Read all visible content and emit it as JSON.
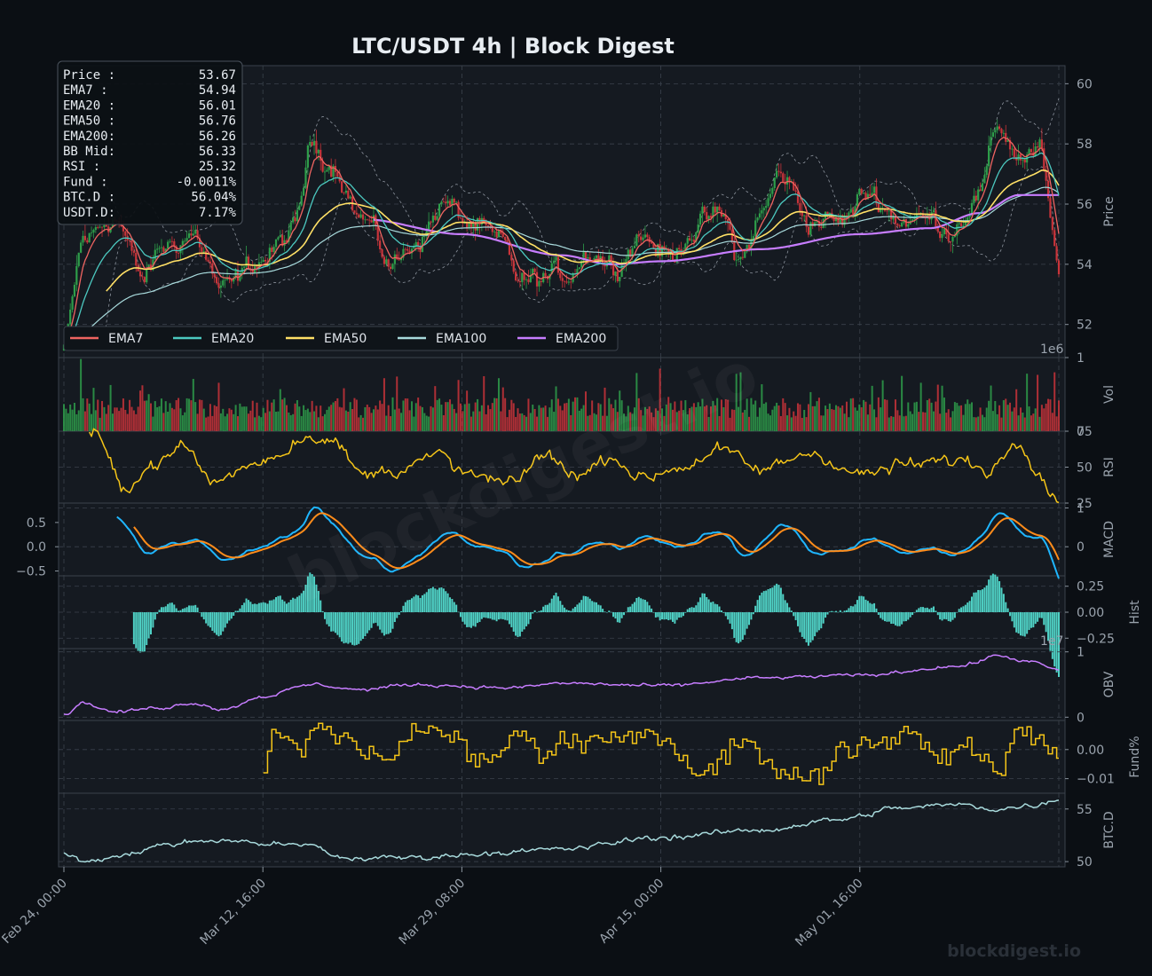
{
  "chart_data": {
    "type": "line",
    "title": "LTC/USDT  4h  |  Block Digest",
    "watermark_center": "blockdigest.io",
    "watermark_corner": "blockdigest.io",
    "x_ticks": [
      "Feb 24, 00:00",
      "Mar 12, 16:00",
      "Mar 29, 08:00",
      "Apr 15, 00:00",
      "May 01, 16:00"
    ],
    "info_box": [
      {
        "label": "Price :",
        "value": "53.67"
      },
      {
        "label": "EMA7  :",
        "value": "54.94"
      },
      {
        "label": "EMA20 :",
        "value": "56.01"
      },
      {
        "label": "EMA50 :",
        "value": "56.76"
      },
      {
        "label": "EMA200:",
        "value": "56.26"
      },
      {
        "label": "BB Mid:",
        "value": "56.33"
      },
      {
        "label": "RSI   :",
        "value": "25.32"
      },
      {
        "label": "Fund  :",
        "value": "-0.0011%"
      },
      {
        "label": "BTC.D :",
        "value": "56.04%"
      },
      {
        "label": "USDT.D:",
        "value": "7.17%"
      }
    ],
    "legend": [
      {
        "name": "EMA7",
        "color": "#ef6461"
      },
      {
        "name": "EMA20",
        "color": "#4cc9c0"
      },
      {
        "name": "EMA50",
        "color": "#ffe066"
      },
      {
        "name": "EMA100",
        "color": "#a8dadc"
      },
      {
        "name": "EMA200",
        "color": "#c77dff"
      }
    ],
    "panels": [
      {
        "key": "price",
        "ylabel": "Price",
        "yticks": [
          "60",
          "58",
          "56",
          "54",
          "52"
        ],
        "ylim": [
          50.9,
          60.6
        ],
        "offset_label": "1e6"
      },
      {
        "key": "vol",
        "ylabel": "Vol",
        "yticks": [
          "1",
          "0"
        ],
        "ylim": [
          0,
          1
        ]
      },
      {
        "key": "rsi",
        "ylabel": "RSI",
        "yticks": [
          "75",
          "50",
          "25"
        ],
        "ylim": [
          25,
          75
        ]
      },
      {
        "key": "macd",
        "ylabel": "MACD",
        "yticks_right": [
          "1",
          "0"
        ],
        "yticks_left": [
          "0.5",
          "0.0",
          "−0.5"
        ],
        "ylim": [
          -0.6,
          0.9
        ]
      },
      {
        "key": "hist",
        "ylabel": "Hist",
        "yticks": [
          "0.25",
          "0.00",
          "−0.25"
        ],
        "ylim": [
          -0.35,
          0.35
        ],
        "offset_label": "1e7"
      },
      {
        "key": "obv",
        "ylabel": "OBV",
        "yticks": [
          "1",
          "0"
        ],
        "ylim": [
          -0.05,
          1.05
        ]
      },
      {
        "key": "fund",
        "ylabel": "Fund%",
        "yticks": [
          "0.00",
          "−0.01"
        ],
        "ylim": [
          -0.015,
          0.01
        ]
      },
      {
        "key": "btcd",
        "ylabel": "BTC.D",
        "yticks": [
          "55",
          "50"
        ],
        "ylim": [
          49.5,
          56.5
        ]
      }
    ],
    "series": {
      "close_anchors": [
        [
          0,
          51.3
        ],
        [
          0.02,
          54.8
        ],
        [
          0.05,
          55.6
        ],
        [
          0.08,
          53.5
        ],
        [
          0.1,
          54.6
        ],
        [
          0.13,
          55.0
        ],
        [
          0.16,
          53.1
        ],
        [
          0.2,
          54.2
        ],
        [
          0.23,
          55.0
        ],
        [
          0.25,
          58.0
        ],
        [
          0.27,
          57.4
        ],
        [
          0.3,
          55.5
        ],
        [
          0.33,
          54.0
        ],
        [
          0.36,
          55.0
        ],
        [
          0.38,
          56.0
        ],
        [
          0.41,
          55.3
        ],
        [
          0.44,
          54.6
        ],
        [
          0.46,
          53.4
        ],
        [
          0.5,
          53.6
        ],
        [
          0.53,
          54.5
        ],
        [
          0.55,
          54.0
        ],
        [
          0.58,
          55.0
        ],
        [
          0.61,
          54.2
        ],
        [
          0.63,
          55.2
        ],
        [
          0.66,
          55.6
        ],
        [
          0.68,
          54.1
        ],
        [
          0.7,
          55.6
        ],
        [
          0.72,
          57.0
        ],
        [
          0.75,
          55.5
        ],
        [
          0.78,
          55.4
        ],
        [
          0.81,
          56.4
        ],
        [
          0.84,
          55.5
        ],
        [
          0.87,
          55.5
        ],
        [
          0.89,
          55.2
        ],
        [
          0.92,
          56.3
        ],
        [
          0.94,
          58.6
        ],
        [
          0.96,
          57.6
        ],
        [
          0.98,
          57.8
        ],
        [
          1.0,
          53.7
        ]
      ],
      "ema200_anchors": [
        [
          0.3,
          55.5
        ],
        [
          0.4,
          55.0
        ],
        [
          0.5,
          54.3
        ],
        [
          0.55,
          54.0
        ],
        [
          0.6,
          54.1
        ],
        [
          0.7,
          54.5
        ],
        [
          0.8,
          55.0
        ],
        [
          0.87,
          55.2
        ],
        [
          0.92,
          55.7
        ],
        [
          0.96,
          56.3
        ],
        [
          1.0,
          56.3
        ]
      ],
      "rsi_anchors": [
        [
          0.03,
          73
        ],
        [
          0.06,
          37
        ],
        [
          0.1,
          55
        ],
        [
          0.12,
          65
        ],
        [
          0.15,
          40
        ],
        [
          0.2,
          55
        ],
        [
          0.25,
          72
        ],
        [
          0.27,
          68
        ],
        [
          0.3,
          45
        ],
        [
          0.33,
          48
        ],
        [
          0.38,
          58
        ],
        [
          0.4,
          46
        ],
        [
          0.45,
          38
        ],
        [
          0.48,
          58
        ],
        [
          0.52,
          45
        ],
        [
          0.55,
          58
        ],
        [
          0.58,
          42
        ],
        [
          0.62,
          50
        ],
        [
          0.66,
          62
        ],
        [
          0.7,
          48
        ],
        [
          0.75,
          60
        ],
        [
          0.8,
          45
        ],
        [
          0.85,
          52
        ],
        [
          0.9,
          55
        ],
        [
          0.93,
          48
        ],
        [
          0.96,
          70
        ],
        [
          0.98,
          45
        ],
        [
          1.0,
          25
        ]
      ],
      "obv_anchors": [
        [
          0,
          0.05
        ],
        [
          0.02,
          0.22
        ],
        [
          0.05,
          0.08
        ],
        [
          0.1,
          0.15
        ],
        [
          0.13,
          0.22
        ],
        [
          0.16,
          0.12
        ],
        [
          0.2,
          0.32
        ],
        [
          0.25,
          0.5
        ],
        [
          0.3,
          0.42
        ],
        [
          0.35,
          0.5
        ],
        [
          0.45,
          0.45
        ],
        [
          0.5,
          0.52
        ],
        [
          0.6,
          0.48
        ],
        [
          0.7,
          0.6
        ],
        [
          0.8,
          0.64
        ],
        [
          0.9,
          0.78
        ],
        [
          0.94,
          0.94
        ],
        [
          0.97,
          0.85
        ],
        [
          1.0,
          0.72
        ]
      ],
      "btcd_anchors": [
        [
          0,
          50.6
        ],
        [
          0.02,
          50.0
        ],
        [
          0.05,
          50.4
        ],
        [
          0.1,
          51.6
        ],
        [
          0.15,
          52.0
        ],
        [
          0.25,
          51.5
        ],
        [
          0.28,
          50.3
        ],
        [
          0.35,
          50.4
        ],
        [
          0.45,
          50.9
        ],
        [
          0.5,
          51.2
        ],
        [
          0.6,
          52.3
        ],
        [
          0.7,
          53.0
        ],
        [
          0.78,
          54.0
        ],
        [
          0.84,
          55.1
        ],
        [
          0.9,
          55.4
        ],
        [
          0.94,
          55.0
        ],
        [
          0.98,
          55.4
        ],
        [
          1.0,
          56.0
        ]
      ],
      "fund_anchors": [
        [
          0.2,
          -0.006
        ],
        [
          0.21,
          0.005
        ],
        [
          0.24,
          0.0
        ],
        [
          0.25,
          0.008
        ],
        [
          0.28,
          0.004
        ],
        [
          0.32,
          -0.004
        ],
        [
          0.35,
          0.006
        ],
        [
          0.38,
          0.006
        ],
        [
          0.42,
          -0.004
        ],
        [
          0.46,
          0.006
        ],
        [
          0.48,
          -0.004
        ],
        [
          0.5,
          0.002
        ],
        [
          0.55,
          0.003
        ],
        [
          0.57,
          0.007
        ],
        [
          0.6,
          0.004
        ],
        [
          0.64,
          -0.008
        ],
        [
          0.68,
          0.002
        ],
        [
          0.72,
          -0.007
        ],
        [
          0.75,
          -0.01
        ],
        [
          0.78,
          0.0
        ],
        [
          0.82,
          0.003
        ],
        [
          0.85,
          0.006
        ],
        [
          0.88,
          -0.002
        ],
        [
          0.91,
          0.001
        ],
        [
          0.94,
          -0.006
        ],
        [
          0.96,
          0.006
        ],
        [
          1.0,
          0.0
        ]
      ]
    }
  }
}
